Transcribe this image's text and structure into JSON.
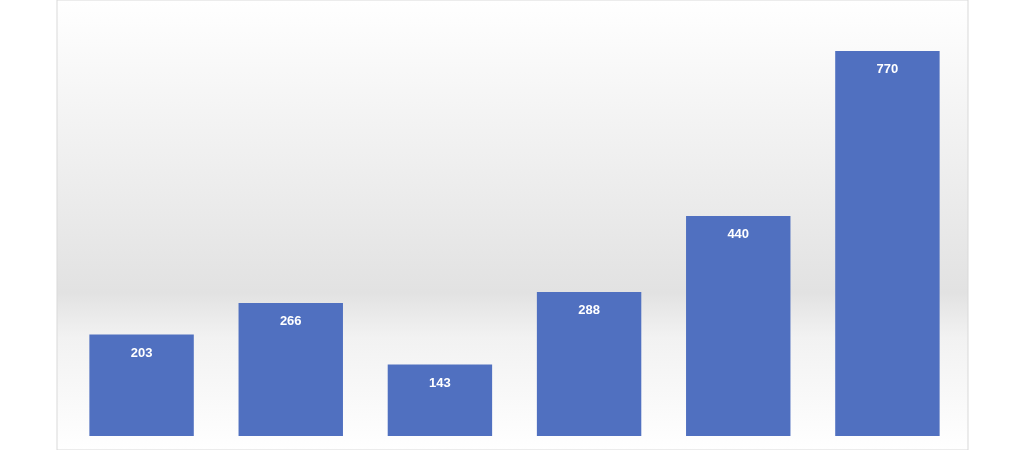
{
  "chart_data": {
    "type": "bar",
    "categories": [
      null,
      null,
      null,
      null,
      null,
      null
    ],
    "values": [
      203,
      266,
      143,
      288,
      440,
      770
    ],
    "color": "#5070c0",
    "data_labels": true
  }
}
